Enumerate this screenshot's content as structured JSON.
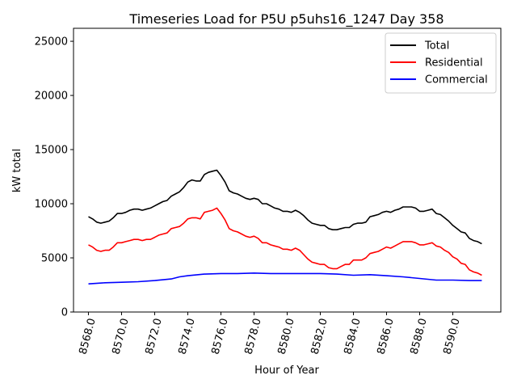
{
  "chart_data": {
    "type": "line",
    "title": "Timeseries Load for P5U p5uhs16_1247  Day 358",
    "xlabel": "Hour of Year",
    "ylabel": "kW total",
    "xlim": [
      8567.1,
      8592.9
    ],
    "ylim": [
      0,
      26200
    ],
    "xticks": [
      8568,
      8570,
      8572,
      8574,
      8576,
      8578,
      8580,
      8582,
      8584,
      8586,
      8588,
      8590
    ],
    "xtick_labels": [
      "8568.0",
      "8570.0",
      "8572.0",
      "8574.0",
      "8576.0",
      "8578.0",
      "8580.0",
      "8582.0",
      "8584.0",
      "8586.0",
      "8588.0",
      "8590.0"
    ],
    "yticks": [
      0,
      5000,
      10000,
      15000,
      20000,
      25000
    ],
    "ytick_labels": [
      "0",
      "5000",
      "10000",
      "15000",
      "20000",
      "25000"
    ],
    "legend_position": "top-right",
    "series": [
      {
        "name": "Total",
        "color": "#000000",
        "x": [
          8568.0,
          8568.25,
          8568.5,
          8568.75,
          8569.0,
          8569.25,
          8569.5,
          8569.75,
          8570.0,
          8570.25,
          8570.5,
          8570.75,
          8571.0,
          8571.25,
          8571.5,
          8571.75,
          8572.0,
          8572.25,
          8572.5,
          8572.75,
          8573.0,
          8573.25,
          8573.5,
          8573.75,
          8574.0,
          8574.25,
          8574.5,
          8574.75,
          8575.0,
          8575.25,
          8575.5,
          8575.75,
          8576.0,
          8576.25,
          8576.5,
          8576.75,
          8577.0,
          8577.25,
          8577.5,
          8577.75,
          8578.0,
          8578.25,
          8578.5,
          8578.75,
          8579.0,
          8579.25,
          8579.5,
          8579.75,
          8580.0,
          8580.25,
          8580.5,
          8580.75,
          8581.0,
          8581.25,
          8581.5,
          8581.75,
          8582.0,
          8582.25,
          8582.5,
          8582.75,
          8583.0,
          8583.25,
          8583.5,
          8583.75,
          8584.0,
          8584.25,
          8584.5,
          8584.75,
          8585.0,
          8585.25,
          8585.5,
          8585.75,
          8586.0,
          8586.25,
          8586.5,
          8586.75,
          8587.0,
          8587.25,
          8587.5,
          8587.75,
          8588.0,
          8588.25,
          8588.5,
          8588.75,
          8589.0,
          8589.25,
          8589.5,
          8589.75,
          8590.0,
          8590.25,
          8590.5,
          8590.75,
          8591.0,
          8591.25,
          8591.5,
          8591.75
        ],
        "values": [
          8800,
          8600,
          8300,
          8200,
          8300,
          8400,
          8700,
          9100,
          9100,
          9200,
          9400,
          9500,
          9500,
          9400,
          9500,
          9600,
          9800,
          10000,
          10200,
          10300,
          10700,
          10900,
          11100,
          11500,
          12000,
          12200,
          12100,
          12100,
          12700,
          12900,
          13000,
          13100,
          12600,
          12000,
          11200,
          11000,
          10900,
          10700,
          10500,
          10400,
          10500,
          10400,
          10000,
          10000,
          9800,
          9600,
          9500,
          9300,
          9300,
          9200,
          9400,
          9200,
          8900,
          8500,
          8200,
          8100,
          8000,
          8000,
          7700,
          7600,
          7600,
          7700,
          7800,
          7800,
          8100,
          8200,
          8200,
          8300,
          8800,
          8900,
          9000,
          9200,
          9300,
          9200,
          9400,
          9500,
          9700,
          9700,
          9700,
          9600,
          9300,
          9300,
          9400,
          9500,
          9100,
          9000,
          8700,
          8400,
          8000,
          7700,
          7400,
          7300,
          6800,
          6600,
          6500,
          6300
        ]
      },
      {
        "name": "Residential",
        "color": "#ff0000",
        "x": [
          8568.0,
          8568.25,
          8568.5,
          8568.75,
          8569.0,
          8569.25,
          8569.5,
          8569.75,
          8570.0,
          8570.25,
          8570.5,
          8570.75,
          8571.0,
          8571.25,
          8571.5,
          8571.75,
          8572.0,
          8572.25,
          8572.5,
          8572.75,
          8573.0,
          8573.25,
          8573.5,
          8573.75,
          8574.0,
          8574.25,
          8574.5,
          8574.75,
          8575.0,
          8575.25,
          8575.5,
          8575.75,
          8576.0,
          8576.25,
          8576.5,
          8576.75,
          8577.0,
          8577.25,
          8577.5,
          8577.75,
          8578.0,
          8578.25,
          8578.5,
          8578.75,
          8579.0,
          8579.25,
          8579.5,
          8579.75,
          8580.0,
          8580.25,
          8580.5,
          8580.75,
          8581.0,
          8581.25,
          8581.5,
          8581.75,
          8582.0,
          8582.25,
          8582.5,
          8582.75,
          8583.0,
          8583.25,
          8583.5,
          8583.75,
          8584.0,
          8584.25,
          8584.5,
          8584.75,
          8585.0,
          8585.25,
          8585.5,
          8585.75,
          8586.0,
          8586.25,
          8586.5,
          8586.75,
          8587.0,
          8587.25,
          8587.5,
          8587.75,
          8588.0,
          8588.25,
          8588.5,
          8588.75,
          8589.0,
          8589.25,
          8589.5,
          8589.75,
          8590.0,
          8590.25,
          8590.5,
          8590.75,
          8591.0,
          8591.25,
          8591.5,
          8591.75
        ],
        "values": [
          6200,
          6000,
          5700,
          5600,
          5700,
          5700,
          6000,
          6400,
          6400,
          6500,
          6600,
          6700,
          6700,
          6600,
          6700,
          6700,
          6900,
          7100,
          7200,
          7300,
          7700,
          7800,
          7900,
          8200,
          8600,
          8700,
          8700,
          8600,
          9200,
          9300,
          9400,
          9600,
          9100,
          8500,
          7700,
          7500,
          7400,
          7200,
          7000,
          6900,
          7000,
          6800,
          6400,
          6400,
          6200,
          6100,
          6000,
          5800,
          5800,
          5700,
          5900,
          5700,
          5300,
          4900,
          4600,
          4500,
          4400,
          4400,
          4100,
          4000,
          4000,
          4200,
          4400,
          4400,
          4800,
          4800,
          4800,
          5000,
          5400,
          5500,
          5600,
          5800,
          6000,
          5900,
          6100,
          6300,
          6500,
          6500,
          6500,
          6400,
          6200,
          6200,
          6300,
          6400,
          6100,
          6000,
          5700,
          5500,
          5100,
          4900,
          4500,
          4400,
          3900,
          3700,
          3600,
          3400
        ]
      },
      {
        "name": "Commercial",
        "color": "#0000ff",
        "x": [
          8568.0,
          8569.0,
          8570.0,
          8571.0,
          8572.0,
          8573.0,
          8573.5,
          8574.0,
          8575.0,
          8576.0,
          8577.0,
          8578.0,
          8579.0,
          8580.0,
          8581.0,
          8582.0,
          8583.0,
          8584.0,
          8585.0,
          8586.0,
          8587.0,
          8588.0,
          8589.0,
          8590.0,
          8591.0,
          8591.75
        ],
        "values": [
          2600,
          2700,
          2750,
          2800,
          2900,
          3050,
          3250,
          3350,
          3500,
          3550,
          3550,
          3600,
          3550,
          3550,
          3550,
          3550,
          3500,
          3400,
          3450,
          3350,
          3250,
          3100,
          2950,
          2950,
          2900,
          2900
        ]
      }
    ]
  }
}
